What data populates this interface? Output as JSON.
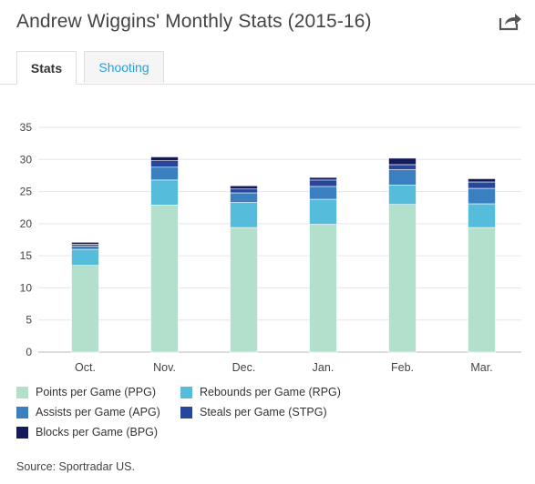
{
  "header": {
    "title": "Andrew Wiggins' Monthly Stats (2015-16)",
    "share_icon": "share-icon"
  },
  "tabs": [
    {
      "label": "Stats",
      "active": true
    },
    {
      "label": "Shooting",
      "active": false
    }
  ],
  "chart_data": {
    "type": "bar",
    "stacked": true,
    "title": "Andrew Wiggins' Monthly Stats (2015-16)",
    "categories": [
      "Oct.",
      "Nov.",
      "Dec.",
      "Jan.",
      "Feb.",
      "Mar."
    ],
    "ylim": [
      0,
      35
    ],
    "yticks": [
      0,
      5,
      10,
      15,
      20,
      25,
      30,
      35
    ],
    "grid": true,
    "legend_position": "bottom",
    "series": [
      {
        "name": "Points per Game (PPG)",
        "color": "#b3e0cc",
        "values": [
          13.5,
          22.9,
          19.4,
          19.9,
          23.0,
          19.4
        ]
      },
      {
        "name": "Rebounds per Game (RPG)",
        "color": "#55bcdb",
        "values": [
          2.5,
          3.9,
          3.9,
          3.9,
          3.0,
          3.7
        ]
      },
      {
        "name": "Assists per Game (APG)",
        "color": "#3a7fbf",
        "values": [
          0.5,
          2.0,
          1.5,
          2.0,
          2.4,
          2.4
        ]
      },
      {
        "name": "Steals per Game (STPG)",
        "color": "#27479a",
        "values": [
          0.3,
          1.0,
          0.6,
          1.0,
          0.8,
          1.0
        ]
      },
      {
        "name": "Blocks per Game (BPG)",
        "color": "#141a5a",
        "values": [
          0.3,
          0.6,
          0.5,
          0.4,
          1.0,
          0.5
        ]
      }
    ]
  },
  "footer": {
    "source": "Source: Sportradar US."
  }
}
